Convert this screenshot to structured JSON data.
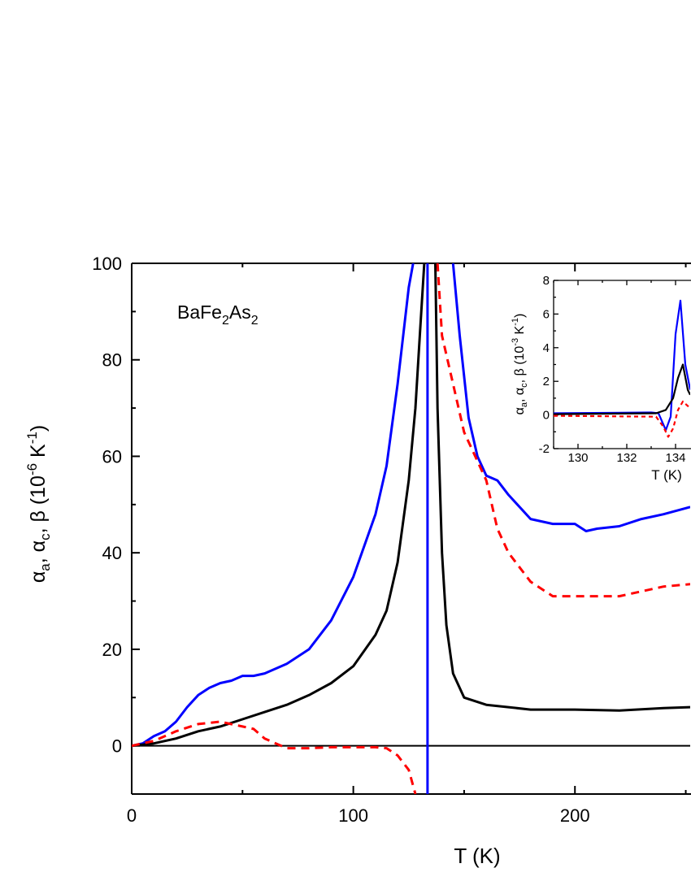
{
  "chart_data": [
    {
      "type": "line",
      "title": "",
      "annotation": {
        "parts": [
          "BaFe",
          "2",
          "As",
          "2"
        ]
      },
      "xlabel": "T (K)",
      "ylabel": {
        "parts": [
          "α",
          "a",
          ", α",
          "c",
          ", β (10",
          "-6",
          " K",
          "-1",
          ")"
        ]
      },
      "xlim": [
        0,
        252
      ],
      "ylim": [
        -10,
        100
      ],
      "xticks": [
        0,
        100,
        200
      ],
      "yticks": [
        0,
        20,
        40,
        60,
        80,
        100
      ],
      "grid": false,
      "zero_line": true,
      "series": [
        {
          "color": "#0000ff",
          "style": "solid",
          "segments": [
            [
              [
                0,
                0
              ],
              [
                5,
                0.5
              ],
              [
                10,
                2
              ],
              [
                15,
                3
              ],
              [
                20,
                5
              ],
              [
                25,
                8
              ],
              [
                30,
                10.5
              ],
              [
                35,
                12
              ],
              [
                40,
                13
              ],
              [
                45,
                13.5
              ],
              [
                50,
                14.5
              ],
              [
                55,
                14.5
              ],
              [
                60,
                15
              ],
              [
                70,
                17
              ],
              [
                80,
                20
              ],
              [
                90,
                26
              ],
              [
                100,
                35
              ],
              [
                110,
                48
              ],
              [
                115,
                58
              ],
              [
                120,
                75
              ],
              [
                125,
                95
              ],
              [
                127,
                100
              ]
            ],
            [
              [
                133.5,
                -10
              ],
              [
                133.5,
                100
              ]
            ],
            [
              [
                145,
                100
              ],
              [
                148,
                85
              ],
              [
                152,
                68
              ],
              [
                156,
                60
              ],
              [
                160,
                56
              ],
              [
                165,
                55
              ],
              [
                170,
                52
              ],
              [
                180,
                47
              ],
              [
                190,
                46
              ],
              [
                200,
                46
              ],
              [
                205,
                44.5
              ],
              [
                210,
                45
              ],
              [
                220,
                45.5
              ],
              [
                230,
                47
              ],
              [
                240,
                48
              ],
              [
                252,
                49.5
              ]
            ]
          ]
        },
        {
          "color": "#000000",
          "style": "solid",
          "segments": [
            [
              [
                0,
                0
              ],
              [
                10,
                0.5
              ],
              [
                20,
                1.5
              ],
              [
                30,
                3
              ],
              [
                40,
                4
              ],
              [
                50,
                5.5
              ],
              [
                60,
                7
              ],
              [
                70,
                8.5
              ],
              [
                80,
                10.5
              ],
              [
                90,
                13
              ],
              [
                100,
                16.5
              ],
              [
                110,
                23
              ],
              [
                115,
                28
              ],
              [
                120,
                38
              ],
              [
                125,
                55
              ],
              [
                128,
                70
              ],
              [
                130,
                85
              ],
              [
                132,
                100
              ]
            ],
            [
              [
                137,
                100
              ],
              [
                138,
                70
              ],
              [
                140,
                40
              ],
              [
                142,
                25
              ],
              [
                145,
                15
              ],
              [
                150,
                10
              ],
              [
                160,
                8.5
              ],
              [
                180,
                7.5
              ],
              [
                200,
                7.5
              ],
              [
                220,
                7.3
              ],
              [
                240,
                7.8
              ],
              [
                252,
                8
              ]
            ]
          ]
        },
        {
          "color": "#ff0000",
          "style": "dashed",
          "segments": [
            [
              [
                0,
                0
              ],
              [
                10,
                1
              ],
              [
                20,
                3
              ],
              [
                30,
                4.5
              ],
              [
                40,
                5
              ],
              [
                50,
                4
              ],
              [
                55,
                3.5
              ],
              [
                60,
                1.5
              ],
              [
                65,
                0.5
              ],
              [
                70,
                -0.5
              ],
              [
                80,
                -0.5
              ],
              [
                90,
                -0.3
              ],
              [
                100,
                -0.3
              ],
              [
                110,
                -0.3
              ],
              [
                115,
                -0.5
              ],
              [
                120,
                -2
              ],
              [
                125,
                -5
              ],
              [
                128,
                -10
              ]
            ],
            [
              [
                138,
                100
              ],
              [
                140,
                85
              ],
              [
                145,
                75
              ],
              [
                150,
                65
              ],
              [
                155,
                60
              ],
              [
                160,
                55
              ],
              [
                165,
                45
              ],
              [
                170,
                40
              ],
              [
                180,
                34
              ],
              [
                190,
                31
              ],
              [
                200,
                31
              ],
              [
                210,
                31
              ],
              [
                220,
                31
              ],
              [
                230,
                32
              ],
              [
                240,
                33
              ],
              [
                252,
                33.5
              ]
            ]
          ]
        }
      ]
    },
    {
      "type": "line",
      "title": "",
      "xlabel": "T (K)",
      "ylabel": {
        "parts": [
          "α",
          "a",
          ", α",
          "c",
          ", β (10",
          "-3",
          " K",
          "-1",
          ")"
        ]
      },
      "xlim": [
        129,
        134.6
      ],
      "ylim": [
        -2,
        8
      ],
      "xticks": [
        130,
        132,
        134
      ],
      "yticks": [
        -2,
        0,
        2,
        4,
        6,
        8
      ],
      "grid": false,
      "series": [
        {
          "color": "#0000ff",
          "style": "solid",
          "segments": [
            [
              [
                129,
                0.1
              ],
              [
                133,
                0.15
              ],
              [
                133.3,
                0.1
              ],
              [
                133.6,
                -0.9
              ],
              [
                133.8,
                -0.1
              ],
              [
                134,
                4.8
              ],
              [
                134.2,
                6.8
              ],
              [
                134.4,
                3
              ],
              [
                134.6,
                1.5
              ]
            ]
          ]
        },
        {
          "color": "#000000",
          "style": "solid",
          "segments": [
            [
              [
                129,
                0.05
              ],
              [
                133.2,
                0.1
              ],
              [
                133.6,
                0.3
              ],
              [
                133.9,
                1
              ],
              [
                134.1,
                2.2
              ],
              [
                134.3,
                3
              ],
              [
                134.5,
                1.5
              ],
              [
                134.6,
                1.2
              ]
            ]
          ]
        },
        {
          "color": "#ff0000",
          "style": "dashed",
          "segments": [
            [
              [
                129,
                -0.05
              ],
              [
                133.2,
                -0.1
              ],
              [
                133.5,
                -0.7
              ],
              [
                133.7,
                -1.3
              ],
              [
                133.9,
                -0.8
              ],
              [
                134.1,
                0.3
              ],
              [
                134.3,
                0.8
              ],
              [
                134.6,
                0.4
              ]
            ]
          ]
        }
      ]
    }
  ]
}
